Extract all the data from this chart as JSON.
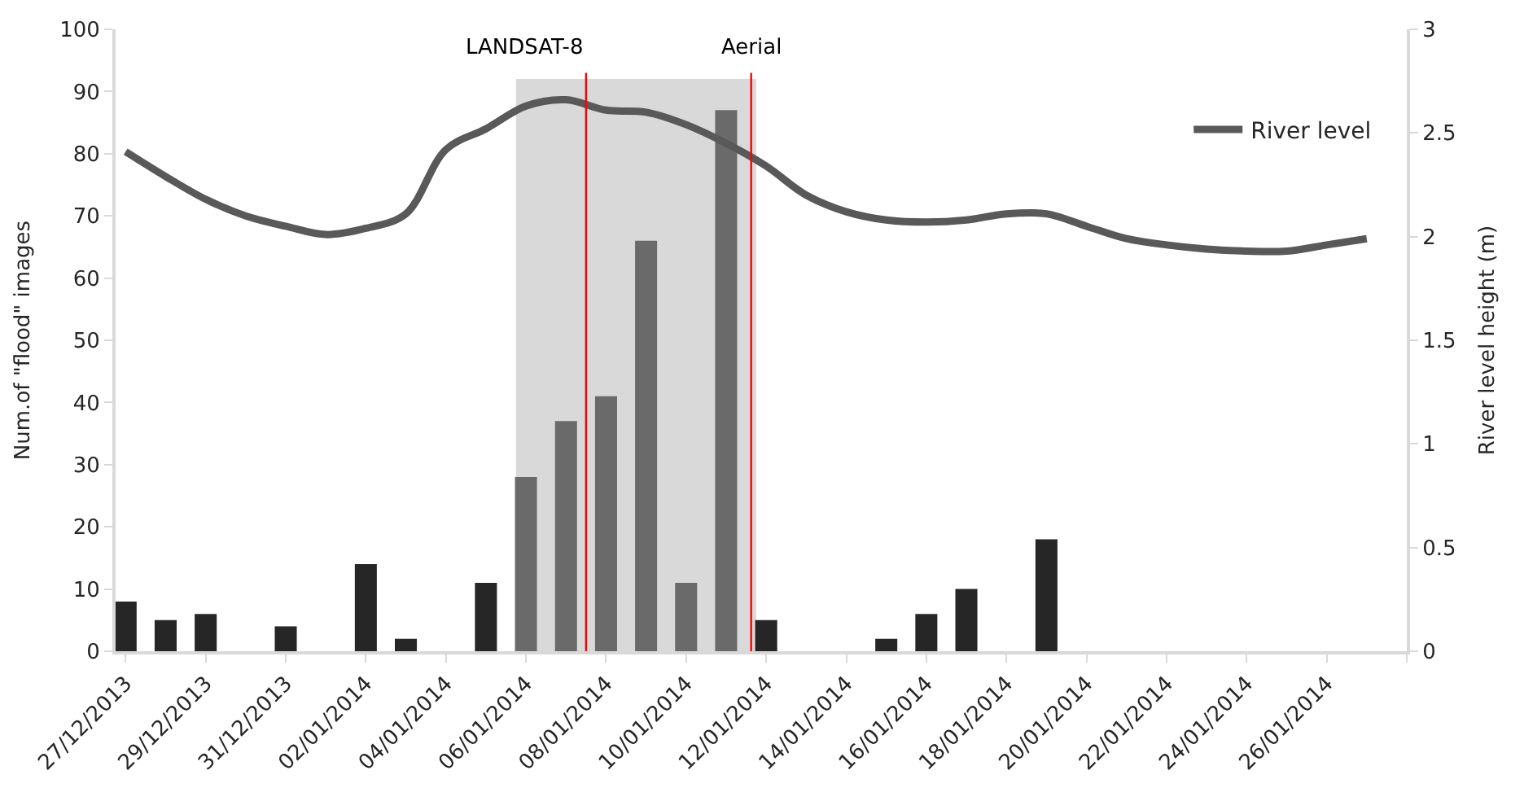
{
  "chart_data": {
    "type": "bar",
    "ylabel": "Num.of \"flood\" images",
    "y2label": "River level height (m)",
    "x": [
      "2013-12-27",
      "2013-12-28",
      "2013-12-29",
      "2013-12-30",
      "2013-12-31",
      "2014-01-01",
      "2014-01-02",
      "2014-01-03",
      "2014-01-04",
      "2014-01-05",
      "2014-01-06",
      "2014-01-07",
      "2014-01-08",
      "2014-01-09",
      "2014-01-10",
      "2014-01-11",
      "2014-01-12",
      "2014-01-13",
      "2014-01-14",
      "2014-01-15",
      "2014-01-16",
      "2014-01-17",
      "2014-01-18",
      "2014-01-19",
      "2014-01-20",
      "2014-01-21",
      "2014-01-22",
      "2014-01-23",
      "2014-01-24",
      "2014-01-25",
      "2014-01-26",
      "2014-01-27"
    ],
    "series": [
      {
        "colors": [
          "#262626",
          "#262626",
          "#262626",
          "#262626",
          "#262626",
          "#262626",
          "#262626",
          "#262626",
          "#262626",
          "#262626",
          "#6a6a6a",
          "#6a6a6a",
          "#6a6a6a",
          "#6a6a6a",
          "#6a6a6a",
          "#6a6a6a",
          "#262626",
          "#262626",
          "#262626",
          "#262626",
          "#262626",
          "#262626",
          "#262626",
          "#262626",
          "#262626",
          "#262626",
          "#262626",
          "#262626",
          "#262626",
          "#262626",
          "#262626",
          "#262626"
        ],
        "values": [
          8,
          5,
          6,
          0,
          4,
          0,
          14,
          2,
          0,
          11,
          28,
          37,
          41,
          66,
          11,
          87,
          5,
          0,
          0,
          2,
          6,
          10,
          0,
          18,
          0,
          0,
          0,
          0,
          0,
          0,
          0,
          0
        ]
      },
      {
        "type": "line",
        "name": "River level",
        "color": "#595959",
        "axis": "y2",
        "values": [
          2.41,
          2.29,
          2.18,
          2.1,
          2.05,
          2.01,
          2.04,
          2.11,
          2.42,
          2.52,
          2.63,
          2.66,
          2.61,
          2.6,
          2.54,
          2.45,
          2.34,
          2.2,
          2.12,
          2.08,
          2.07,
          2.08,
          2.11,
          2.11,
          2.05,
          1.99,
          1.96,
          1.94,
          1.93,
          1.93,
          1.96,
          1.99
        ]
      }
    ],
    "xlim": [
      "2013-12-26T18:00",
      "2014-01-28"
    ],
    "xticks": [
      {
        "value": "2013-12-27",
        "label": "27/12/2013"
      },
      {
        "value": "2013-12-29",
        "label": "29/12/2013"
      },
      {
        "value": "2013-12-31",
        "label": "31/12/2013"
      },
      {
        "value": "2014-01-02",
        "label": "02/01/2014"
      },
      {
        "value": "2014-01-04",
        "label": "04/01/2014"
      },
      {
        "value": "2014-01-06",
        "label": "06/01/2014"
      },
      {
        "value": "2014-01-08",
        "label": "08/01/2014"
      },
      {
        "value": "2014-01-10",
        "label": "10/01/2014"
      },
      {
        "value": "2014-01-12",
        "label": "12/01/2014"
      },
      {
        "value": "2014-01-14",
        "label": "14/01/2014"
      },
      {
        "value": "2014-01-16",
        "label": "16/01/2014"
      },
      {
        "value": "2014-01-18",
        "label": "18/01/2014"
      },
      {
        "value": "2014-01-20",
        "label": "20/01/2014"
      },
      {
        "value": "2014-01-22",
        "label": "22/01/2014"
      },
      {
        "value": "2014-01-24",
        "label": "24/01/2014"
      },
      {
        "value": "2014-01-26",
        "label": "26/01/2014"
      },
      {
        "value": "2014-01-28",
        "label": null
      }
    ],
    "ylim": [
      0,
      100
    ],
    "yticks": [
      0,
      10,
      20,
      30,
      40,
      50,
      60,
      70,
      80,
      90,
      100
    ],
    "y2lim": [
      0,
      3
    ],
    "y2ticks": [
      0,
      0.5,
      1,
      1.5,
      2,
      2.5,
      3
    ],
    "bands": [
      {
        "axis": "x",
        "from": "2014-01-05T18:00",
        "to": "2014-01-11T18:00",
        "color": "#d9d9d9"
      }
    ],
    "ref_lines": [
      {
        "axis": "x",
        "value": "2014-01-07T12:00",
        "label": "LANDSAT-8",
        "color": "#ff0000"
      },
      {
        "axis": "x",
        "value": "2014-01-11T15:00",
        "label": "Aerial",
        "color": "#ff0000"
      }
    ],
    "grid": false,
    "legend": "top right",
    "marker": "none",
    "line_style": "solid"
  }
}
